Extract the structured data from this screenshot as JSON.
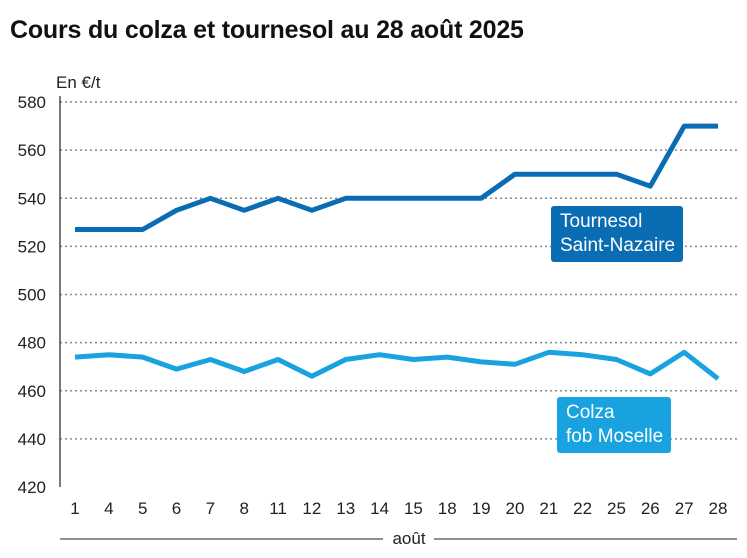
{
  "title": "Cours du colza et tournesol au 28 août 2025",
  "colors": {
    "tournesol": "#0a6db3",
    "colza": "#18a3e0",
    "grid": "#8a8a8a",
    "axis": "#222222"
  },
  "chart_data": {
    "type": "line",
    "title": "Cours du colza et tournesol au 28 août 2025",
    "unit": "En €/t",
    "xlabel": "août",
    "ylabel": "",
    "ylim": [
      420,
      580
    ],
    "yticks": [
      420,
      440,
      460,
      480,
      500,
      520,
      540,
      560,
      580
    ],
    "categories": [
      "1",
      "4",
      "5",
      "6",
      "7",
      "8",
      "11",
      "12",
      "13",
      "14",
      "15",
      "18",
      "19",
      "20",
      "21",
      "22",
      "25",
      "26",
      "27",
      "28"
    ],
    "grid": "horizontal dotted",
    "series": [
      {
        "name": "Tournesol Saint-Nazaire",
        "label_lines": [
          "Tournesol",
          "Saint-Nazaire"
        ],
        "values": [
          527,
          527,
          527,
          535,
          540,
          535,
          540,
          535,
          540,
          540,
          540,
          540,
          540,
          550,
          550,
          550,
          550,
          545,
          570,
          570
        ]
      },
      {
        "name": "Colza fob Moselle",
        "label_lines": [
          "Colza",
          "fob Moselle"
        ],
        "values": [
          474,
          475,
          474,
          469,
          473,
          468,
          473,
          466,
          473,
          475,
          473,
          474,
          472,
          471,
          476,
          475,
          473,
          467,
          476,
          465
        ]
      }
    ]
  }
}
